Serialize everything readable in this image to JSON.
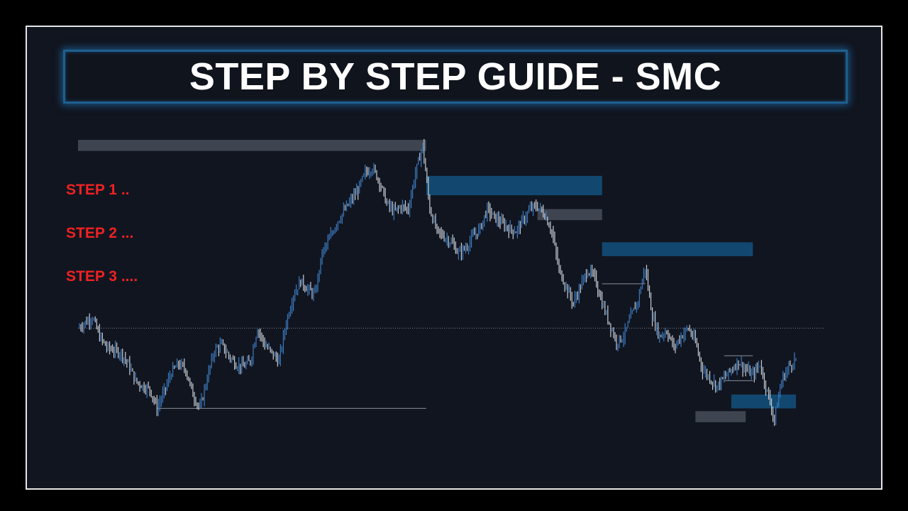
{
  "title": "STEP BY STEP GUIDE - SMC",
  "steps": [
    "STEP 1 ..",
    "STEP 2 ...",
    "STEP 3 ...."
  ],
  "colors": {
    "background": "#111520",
    "frame": "#e6e6e6",
    "title_border": "#1f5f8f",
    "title_text": "#ffffff",
    "step_text": "#ee2222",
    "candle_bull": "#3b7bbf",
    "candle_bear": "#c8ccd2",
    "supply_zone": "#134b75",
    "grey_zone": "#454a55",
    "level_line": "#8a8f98"
  },
  "chart_data": {
    "type": "line",
    "title": "",
    "xlabel": "",
    "ylabel": "",
    "grid": false,
    "xlim": [
      0,
      100
    ],
    "ylim": [
      0,
      100
    ],
    "series": [
      {
        "values": [
          [
            0,
            43
          ],
          [
            1,
            45
          ],
          [
            2,
            47
          ],
          [
            3,
            40
          ],
          [
            4,
            36
          ],
          [
            5,
            35
          ],
          [
            6,
            34
          ],
          [
            7,
            30
          ],
          [
            8,
            24
          ],
          [
            9,
            22
          ],
          [
            10,
            21
          ],
          [
            11,
            14
          ],
          [
            12,
            20
          ],
          [
            13,
            27
          ],
          [
            14,
            30
          ],
          [
            15,
            28
          ],
          [
            16,
            19
          ],
          [
            17,
            14
          ],
          [
            18,
            25
          ],
          [
            19,
            35
          ],
          [
            20,
            37
          ],
          [
            21,
            33
          ],
          [
            22,
            30
          ],
          [
            23,
            29
          ],
          [
            24,
            31
          ],
          [
            25,
            43
          ],
          [
            26,
            37
          ],
          [
            27,
            34
          ],
          [
            28,
            31
          ],
          [
            29,
            45
          ],
          [
            30,
            55
          ],
          [
            31,
            60
          ],
          [
            32,
            57
          ],
          [
            33,
            55
          ],
          [
            34,
            70
          ],
          [
            35,
            75
          ],
          [
            36,
            81
          ],
          [
            37,
            85
          ],
          [
            38,
            89
          ],
          [
            39,
            93
          ],
          [
            40,
            99
          ],
          [
            41,
            101
          ],
          [
            42,
            96
          ],
          [
            43,
            88
          ],
          [
            44,
            85
          ],
          [
            45,
            87
          ],
          [
            46,
            86
          ],
          [
            47,
            99
          ],
          [
            48,
            109
          ],
          [
            49,
            86
          ],
          [
            50,
            78
          ],
          [
            51,
            76
          ],
          [
            52,
            74
          ],
          [
            53,
            70
          ],
          [
            54,
            72
          ],
          [
            55,
            76
          ],
          [
            56,
            79
          ],
          [
            57,
            86
          ],
          [
            58,
            83
          ],
          [
            59,
            81
          ],
          [
            60,
            79
          ],
          [
            61,
            78
          ],
          [
            62,
            82
          ],
          [
            63,
            86
          ],
          [
            64,
            87
          ],
          [
            65,
            84
          ],
          [
            66,
            78
          ],
          [
            67,
            64
          ],
          [
            68,
            58
          ],
          [
            69,
            52
          ],
          [
            70,
            58
          ],
          [
            71,
            64
          ],
          [
            72,
            61
          ],
          [
            73,
            52
          ],
          [
            74,
            45
          ],
          [
            75,
            38
          ],
          [
            76,
            40
          ],
          [
            77,
            47
          ],
          [
            78,
            53
          ],
          [
            79,
            65
          ],
          [
            80,
            47
          ],
          [
            81,
            40
          ],
          [
            82,
            42
          ],
          [
            83,
            36
          ],
          [
            84,
            40
          ],
          [
            85,
            43
          ],
          [
            86,
            38
          ],
          [
            87,
            28
          ],
          [
            88,
            25
          ],
          [
            89,
            22
          ],
          [
            90,
            25
          ],
          [
            91,
            28
          ],
          [
            92,
            31
          ],
          [
            93,
            28
          ],
          [
            94,
            26
          ],
          [
            95,
            30
          ],
          [
            96,
            20
          ],
          [
            97,
            10
          ],
          [
            98,
            24
          ],
          [
            99,
            29
          ],
          [
            100,
            32
          ]
        ]
      }
    ],
    "zones": [
      {
        "type": "grey",
        "x": [
          0,
          48.5
        ],
        "y": [
          107,
          111
        ]
      },
      {
        "type": "supply",
        "x": [
          48.5,
          73
        ],
        "y": [
          91,
          98
        ]
      },
      {
        "type": "grey",
        "x": [
          64,
          73
        ],
        "y": [
          82,
          86
        ]
      },
      {
        "type": "supply",
        "x": [
          73,
          94
        ],
        "y": [
          69,
          74
        ]
      },
      {
        "type": "supply",
        "x": [
          91,
          100
        ],
        "y": [
          14,
          19
        ]
      },
      {
        "type": "grey",
        "x": [
          86,
          93
        ],
        "y": [
          9,
          13
        ]
      }
    ],
    "levels": [
      {
        "y": 43,
        "x": [
          0,
          104
        ],
        "style": "dotted"
      },
      {
        "y": 14,
        "x": [
          11,
          48.5
        ],
        "style": "solid"
      },
      {
        "y": 59,
        "x": [
          73,
          79
        ],
        "style": "solid"
      },
      {
        "y": 33,
        "x": [
          90,
          94
        ],
        "style": "solid"
      },
      {
        "y": 24,
        "x": [
          90,
          94
        ],
        "style": "solid"
      }
    ]
  }
}
